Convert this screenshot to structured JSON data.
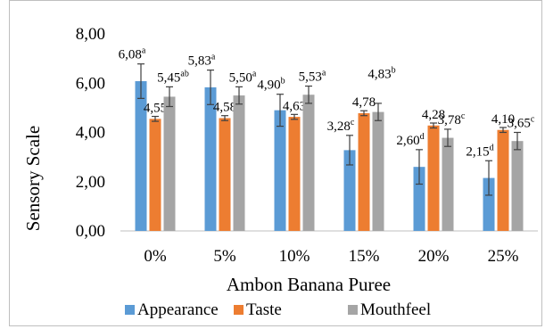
{
  "chart_data": {
    "type": "bar",
    "categories": [
      "0%",
      "5%",
      "10%",
      "15%",
      "20%",
      "25%"
    ],
    "xlabel": "Ambon Banana Puree",
    "ylabel": "Sensory Scale",
    "ylim": [
      0,
      8
    ],
    "yticks": [
      "0,00",
      "2,00",
      "4,00",
      "6,00",
      "8,00"
    ],
    "ytick_values": [
      0,
      2,
      4,
      6,
      8
    ],
    "grid": false,
    "legend_position": "bottom",
    "series": [
      {
        "name": "Appearance",
        "color": "#5b9bd5",
        "values": [
          6.08,
          5.83,
          4.9,
          3.28,
          2.6,
          2.15
        ],
        "errors": [
          0.7,
          0.7,
          0.65,
          0.6,
          0.7,
          0.7
        ],
        "labels": [
          "6,08",
          "5,83",
          "4,90",
          "3,28",
          "2,60",
          "2,15"
        ],
        "letters": [
          "a",
          "a",
          "b",
          "c",
          "d",
          "d"
        ]
      },
      {
        "name": "Taste",
        "color": "#ed7d31",
        "values": [
          4.55,
          4.58,
          4.63,
          4.78,
          4.28,
          4.1
        ],
        "errors": [
          0.1,
          0.1,
          0.1,
          0.1,
          0.1,
          0.1
        ],
        "labels": [
          "4,55",
          "4,58",
          "4,63",
          "4,78",
          "4,28",
          "4,10"
        ],
        "letters": [
          "",
          "",
          "",
          "",
          "",
          ""
        ]
      },
      {
        "name": "Mouthfeel",
        "color": "#a5a5a5",
        "values": [
          5.45,
          5.5,
          5.53,
          4.83,
          3.78,
          3.65
        ],
        "errors": [
          0.4,
          0.35,
          0.35,
          0.35,
          0.35,
          0.35
        ],
        "labels": [
          "5,45",
          "5,50",
          "5,53",
          "4,83",
          "3,78",
          "3,65"
        ],
        "letters": [
          "ab",
          "a",
          "a",
          "b",
          "c",
          "c"
        ]
      }
    ]
  }
}
